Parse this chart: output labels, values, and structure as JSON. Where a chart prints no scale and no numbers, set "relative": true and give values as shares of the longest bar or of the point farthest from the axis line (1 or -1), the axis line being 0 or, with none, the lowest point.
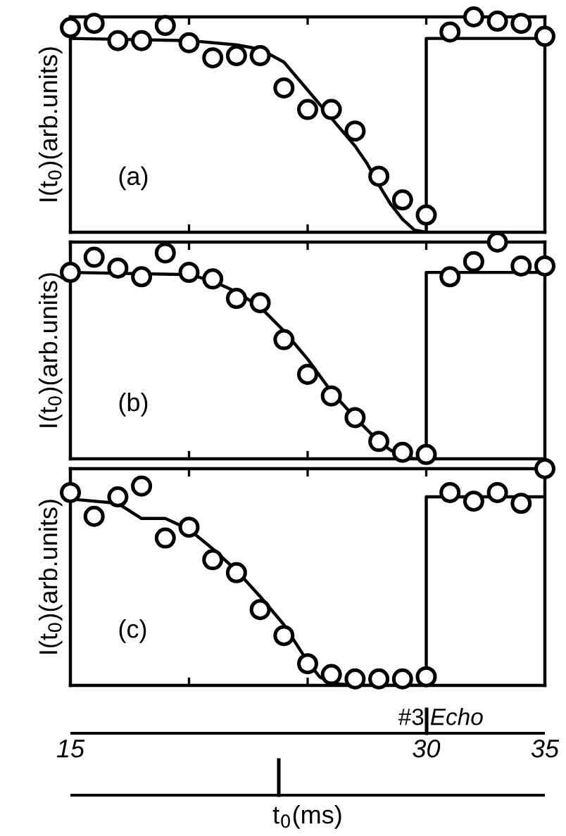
{
  "chart_data": [
    {
      "type": "scatter",
      "relative": true,
      "ylabel": "I(t$_{0}$)(arb.units)",
      "annotations": [
        "(a)"
      ],
      "marker": "circle",
      "grid": false,
      "tick_labels": false,
      "xlim": [
        15,
        35
      ],
      "xticks": [
        {
          "value": 15,
          "label": null
        },
        {
          "value": 20,
          "label": null
        },
        {
          "value": 25,
          "label": null
        },
        {
          "value": 30,
          "label": null
        },
        {
          "value": 35,
          "label": null
        }
      ],
      "x": [
        15,
        16,
        17,
        18,
        19,
        20,
        21,
        22,
        23,
        24,
        25,
        26,
        27,
        28,
        29,
        30,
        31,
        32,
        33,
        34,
        35
      ],
      "series": [
        {
          "color": "#000000",
          "values": [
            0.95,
            0.97,
            0.89,
            0.89,
            0.96,
            0.88,
            0.81,
            0.82,
            0.82,
            0.67,
            0.57,
            0.57,
            0.47,
            0.26,
            0.15,
            0.08,
            0.93,
            1.0,
            0.98,
            0.97,
            0.91
          ]
        },
        {
          "type": "line",
          "color": "#000000",
          "marker": "none",
          "x": [
            15,
            20,
            22,
            23,
            24,
            25,
            26,
            27,
            27.5,
            28,
            28.5,
            29,
            29.5,
            30,
            30,
            35
          ],
          "values": [
            0.9,
            0.89,
            0.87,
            0.85,
            0.79,
            0.66,
            0.53,
            0.4,
            0.32,
            0.22,
            0.13,
            0.06,
            0.01,
            0,
            0.9,
            0.9
          ]
        }
      ]
    },
    {
      "type": "scatter",
      "relative": true,
      "ylabel": "I(t$_{0}$)(arb.units)",
      "annotations": [
        "(b)"
      ],
      "marker": "circle",
      "grid": false,
      "tick_labels": false,
      "xlim": [
        15,
        35
      ],
      "xticks": [
        {
          "value": 15,
          "label": null
        },
        {
          "value": 20,
          "label": null
        },
        {
          "value": 25,
          "label": null
        },
        {
          "value": 30,
          "label": null
        },
        {
          "value": 35,
          "label": null
        }
      ],
      "x": [
        15,
        16,
        17,
        18,
        19,
        20,
        21,
        22,
        23,
        24,
        25,
        26,
        27,
        28,
        29,
        30,
        31,
        32,
        33,
        34,
        35
      ],
      "series": [
        {
          "color": "#000000",
          "values": [
            0.86,
            0.93,
            0.88,
            0.84,
            0.95,
            0.86,
            0.83,
            0.74,
            0.72,
            0.55,
            0.39,
            0.29,
            0.19,
            0.08,
            0.03,
            0.02,
            0.84,
            0.91,
            1.0,
            0.89,
            0.89
          ]
        },
        {
          "type": "line",
          "color": "#000000",
          "marker": "none",
          "x": [
            15,
            20,
            21,
            22,
            23,
            24,
            25,
            26,
            27,
            28,
            28.5,
            29,
            29.5,
            30,
            30,
            35
          ],
          "values": [
            0.86,
            0.85,
            0.82,
            0.77,
            0.7,
            0.59,
            0.46,
            0.31,
            0.19,
            0.08,
            0.04,
            0.01,
            0,
            0,
            0.86,
            0.86
          ]
        }
      ]
    },
    {
      "type": "scatter",
      "relative": true,
      "ylabel": "I(t$_{0}$)(arb.units)",
      "xlabel": "t$_{0}$(ms)",
      "annotations": [
        "(c)",
        "#3",
        "Echo"
      ],
      "marker": "circle",
      "grid": false,
      "tick_labels": "x",
      "xlim": [
        15,
        35
      ],
      "xticks": [
        15,
        {
          "value": 20,
          "label": null
        },
        {
          "value": 25,
          "label": null
        },
        30,
        35
      ],
      "x": [
        15,
        16,
        17,
        18,
        19,
        20,
        21,
        22,
        23,
        24,
        25,
        26,
        27,
        28,
        29,
        30,
        31,
        32,
        33,
        34,
        35
      ],
      "series": [
        {
          "color": "#000000",
          "values": [
            0.89,
            0.78,
            0.87,
            0.92,
            0.68,
            0.73,
            0.58,
            0.52,
            0.35,
            0.23,
            0.1,
            0.05,
            0.03,
            0.03,
            0.03,
            0.04,
            0.89,
            0.85,
            0.89,
            0.84,
            1.0
          ]
        },
        {
          "type": "line",
          "color": "#000000",
          "marker": "none",
          "x": [
            15,
            17,
            18,
            19,
            20,
            21,
            22,
            23,
            24,
            25,
            25.5,
            26,
            27,
            30,
            30,
            35
          ],
          "values": [
            0.86,
            0.84,
            0.77,
            0.77,
            0.72,
            0.63,
            0.53,
            0.41,
            0.28,
            0.11,
            0.04,
            0.01,
            0,
            0,
            0.87,
            0.87
          ]
        }
      ]
    }
  ]
}
